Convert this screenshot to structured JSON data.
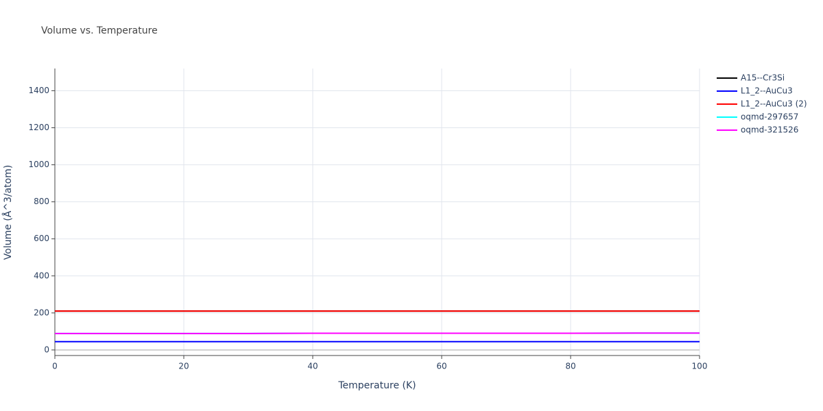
{
  "chart_data": {
    "type": "line",
    "title": "Volume vs. Temperature",
    "x_label": "Temperature (K)",
    "y_label": "Volume (Å^3/atom)",
    "x": [
      0,
      10,
      20,
      30,
      40,
      50,
      60,
      70,
      80,
      90,
      100
    ],
    "series": [
      {
        "name": "A15--Cr3Si",
        "color": "#000000",
        "values": [
          210,
          210,
          210,
          210,
          210,
          210,
          210,
          210,
          210,
          210,
          210
        ]
      },
      {
        "name": "L1_2--AuCu3",
        "color": "#0000ff",
        "values": [
          45,
          45,
          45,
          45,
          45,
          45,
          45,
          45,
          45,
          45,
          45
        ]
      },
      {
        "name": "L1_2--AuCu3 (2)",
        "color": "#ff0000",
        "values": [
          210,
          210,
          210,
          210,
          210,
          210,
          210,
          210,
          210,
          210,
          210
        ]
      },
      {
        "name": "oqmd-297657",
        "color": "#00ffff",
        "values": [
          89,
          89,
          89,
          89,
          90,
          90,
          90,
          90,
          90,
          91,
          91
        ]
      },
      {
        "name": "oqmd-321526",
        "color": "#ff00ff",
        "values": [
          89,
          89,
          89,
          89,
          90,
          90,
          90,
          90,
          90,
          91,
          91
        ]
      }
    ],
    "xlim": [
      0,
      100
    ],
    "xticks": [
      0,
      20,
      40,
      60,
      80,
      100
    ],
    "ylim": [
      -30,
      1520
    ],
    "yticks": [
      0,
      200,
      400,
      600,
      800,
      1000,
      1200,
      1400
    ],
    "grid": true,
    "legend": "outside-top-right"
  }
}
